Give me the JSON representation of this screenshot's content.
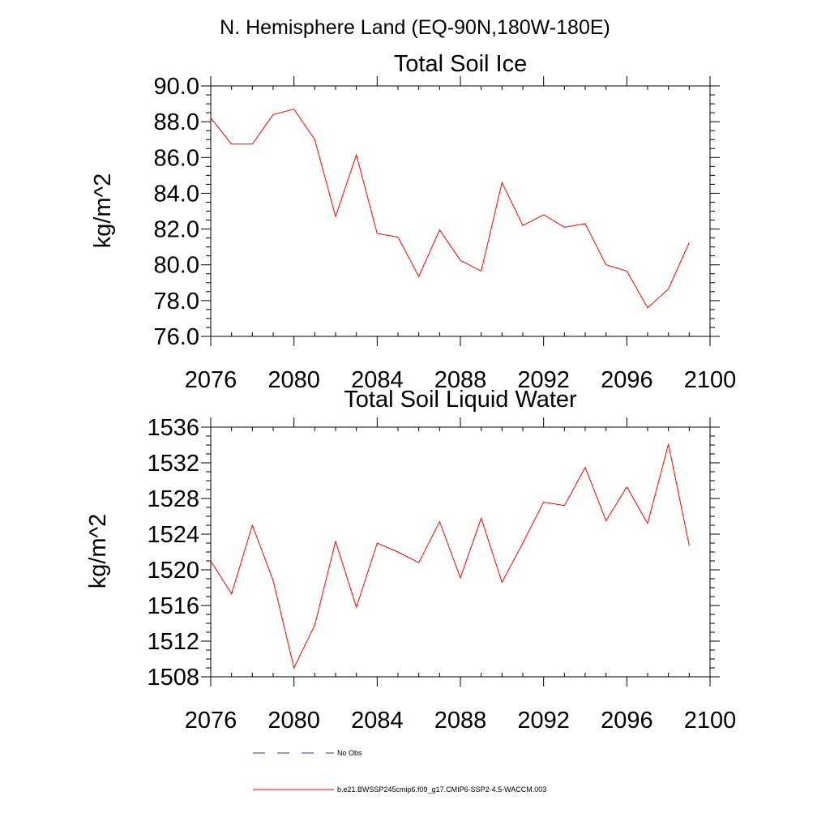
{
  "figure": {
    "title": "N. Hemisphere Land (EQ-90N,180W-180E)"
  },
  "chart_data": [
    {
      "type": "line",
      "title": "Total Soil Ice",
      "xlabel": "",
      "ylabel": "kg/m^2",
      "xlim": [
        2076,
        2100
      ],
      "ylim": [
        76,
        90
      ],
      "x_major_ticks": [
        2076,
        2080,
        2084,
        2088,
        2092,
        2096,
        2100
      ],
      "x_tick_labels": [
        "2076",
        "2080",
        "2084",
        "2088",
        "2092",
        "2096",
        "2100"
      ],
      "x_minor_step": 1,
      "y_major_ticks": [
        76,
        78,
        80,
        82,
        84,
        86,
        88,
        90
      ],
      "y_tick_labels": [
        "76.0",
        "78.0",
        "80.0",
        "82.0",
        "84.0",
        "86.0",
        "88.0",
        "90.0"
      ],
      "y_minor_step": 0.5,
      "series": [
        {
          "name": "b.e21.BWSSP245cmip6.f09_g17.CMIP6-SSP2-4.5-WACCM.003",
          "color": "#ff0000",
          "x": [
            2076,
            2077,
            2078,
            2079,
            2080,
            2081,
            2082,
            2083,
            2084,
            2085,
            2086,
            2087,
            2088,
            2089,
            2090,
            2091,
            2092,
            2093,
            2094,
            2095,
            2096,
            2097,
            2098,
            2099
          ],
          "values": [
            88.2,
            86.75,
            86.75,
            88.4,
            88.7,
            87.0,
            82.7,
            86.15,
            81.75,
            81.55,
            79.35,
            81.95,
            80.25,
            79.65,
            84.6,
            82.2,
            82.8,
            82.1,
            82.3,
            80.0,
            79.65,
            77.6,
            78.65,
            81.25
          ]
        }
      ]
    },
    {
      "type": "line",
      "title": "Total Soil Liquid Water",
      "xlabel": "",
      "ylabel": "kg/m^2",
      "xlim": [
        2076,
        2100
      ],
      "ylim": [
        1508,
        1536
      ],
      "x_major_ticks": [
        2076,
        2080,
        2084,
        2088,
        2092,
        2096,
        2100
      ],
      "x_tick_labels": [
        "2076",
        "2080",
        "2084",
        "2088",
        "2092",
        "2096",
        "2100"
      ],
      "x_minor_step": 1,
      "y_major_ticks": [
        1508,
        1512,
        1516,
        1520,
        1524,
        1528,
        1532,
        1536
      ],
      "y_tick_labels": [
        "1508",
        "1512",
        "1516",
        "1520",
        "1524",
        "1528",
        "1532",
        "1536"
      ],
      "y_minor_step": 1,
      "series": [
        {
          "name": "b.e21.BWSSP245cmip6.f09_g17.CMIP6-SSP2-4.5-WACCM.003",
          "color": "#ff0000",
          "x": [
            2076,
            2077,
            2078,
            2079,
            2080,
            2081,
            2082,
            2083,
            2084,
            2085,
            2086,
            2087,
            2088,
            2089,
            2090,
            2091,
            2092,
            2093,
            2094,
            2095,
            2096,
            2097,
            2098,
            2099
          ],
          "values": [
            1521.0,
            1517.3,
            1525.0,
            1518.8,
            1509.0,
            1513.8,
            1523.2,
            1515.8,
            1523.0,
            1522.0,
            1520.8,
            1525.4,
            1519.1,
            1525.8,
            1518.6,
            1523.0,
            1527.6,
            1527.2,
            1531.5,
            1525.5,
            1529.3,
            1525.2,
            1534.1,
            1522.7
          ]
        }
      ]
    }
  ],
  "legend": {
    "placement": "bottom-center",
    "entries": [
      {
        "label": "No Obs",
        "color": "#1f3f7f",
        "style": "dashed"
      },
      {
        "label": "b.e21.BWSSP245cmip6.f09_g17.CMIP6-SSP2-4.5-WACCM.003",
        "color": "#ff0000",
        "style": "solid"
      }
    ]
  }
}
